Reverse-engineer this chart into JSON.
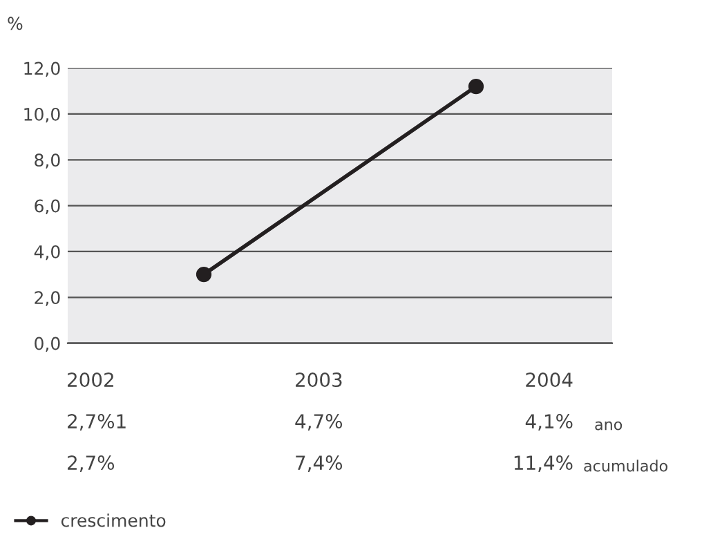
{
  "chart_data": {
    "type": "line",
    "ylabel": "%",
    "categories": [
      null,
      null
    ],
    "series": [
      {
        "name": "crescimento",
        "color": "#231f20",
        "values": [
          3.0,
          11.2
        ]
      }
    ],
    "ylim": [
      0,
      12
    ],
    "yticks": [
      {
        "value": 0,
        "label": "0,0"
      },
      {
        "value": 2,
        "label": "2,0"
      },
      {
        "value": 4,
        "label": "4,0"
      },
      {
        "value": 6,
        "label": "6,0"
      },
      {
        "value": 8,
        "label": "8,0"
      },
      {
        "value": 10,
        "label": "10,0"
      },
      {
        "value": 12,
        "label": "12,0"
      }
    ],
    "grid": "y",
    "tick_labels": "y",
    "marker": "circle",
    "line_style": "solid",
    "legend": "bottom left",
    "annotations": [
      "2002",
      "2003",
      "2004",
      "2,7%1",
      "4,7%",
      "4,1%",
      "ano",
      "2,7%",
      "7,4%",
      "11,4%",
      "acumulado"
    ]
  }
}
